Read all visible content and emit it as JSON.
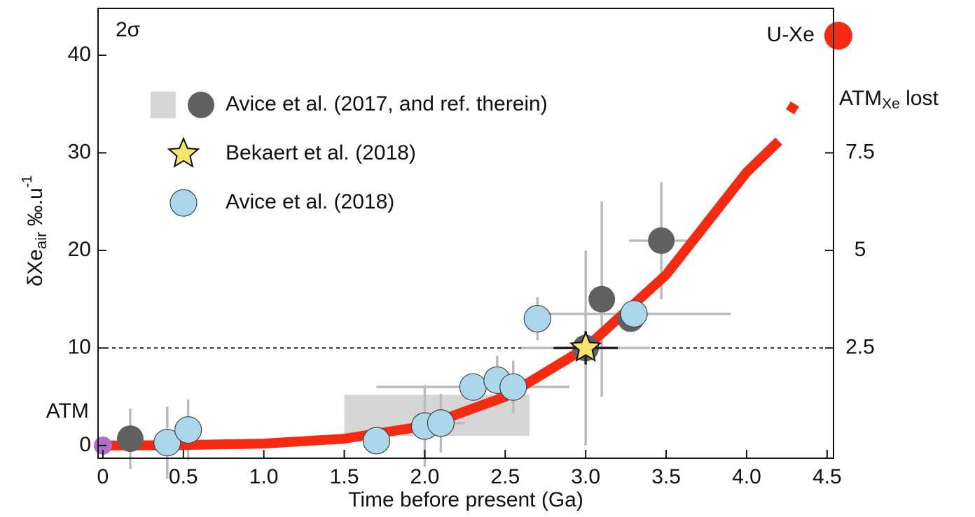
{
  "chart_data": {
    "type": "scatter",
    "annotation": "2σ",
    "xlabel": "Time before present (Ga)",
    "ylabel": {
      "main": "δXe",
      "sub": "air",
      "unit": " ‰.u",
      "sup": "-1"
    },
    "y2label": {
      "main": "ATM",
      "sub": "Xe",
      "rest": " lost"
    },
    "xlim": [
      -0.03,
      4.54
    ],
    "ylim": [
      -1.3,
      44.8
    ],
    "y2lim": [
      -0.325,
      11.2
    ],
    "xticks": [
      0,
      0.5,
      {
        "value": 1,
        "label": "1.0"
      },
      1.5,
      {
        "value": 2,
        "label": "2.0"
      },
      2.5,
      {
        "value": 3,
        "label": "3.0"
      },
      3.5,
      {
        "value": 4,
        "label": "4.0"
      },
      4.5
    ],
    "yticks": [
      0,
      10,
      20,
      30,
      40
    ],
    "y2ticks": [
      2.5,
      5,
      7.5
    ],
    "hline": 10,
    "box": {
      "x": [
        1.5,
        2.65
      ],
      "y": [
        1,
        5.2
      ],
      "color": "#d6d6d6"
    },
    "curve": {
      "color": "#f52a10",
      "x": [
        0,
        0.5,
        1,
        1.5,
        2,
        2.5,
        3,
        3.5,
        4,
        4.2,
        4.23,
        4.27,
        4.3
      ],
      "values": [
        0,
        0.05,
        0.2,
        0.7,
        2,
        5,
        10,
        17.5,
        28,
        31.2,
        null,
        34.2,
        35
      ]
    },
    "points": [
      {
        "label": "ATM",
        "x": 0,
        "y": 0,
        "color": "#b46ec6"
      },
      {
        "label": "U-Xe",
        "x": 4.57,
        "y": 42,
        "color": "#f52a10"
      }
    ],
    "series": [
      {
        "name": "Avice et al. (2017, and ref. therein)",
        "color": "#606060",
        "marker": "circle",
        "x": [
          0.17,
          3.0,
          3.1,
          3.28,
          3.47
        ],
        "values": [
          0.7,
          10,
          15,
          13,
          21
        ],
        "xerr": [
          null,
          0.4,
          null,
          null,
          0.2
        ],
        "yerr": [
          3.1,
          10,
          10,
          null,
          6
        ]
      },
      {
        "name": "Bekaert et al. (2018)",
        "color": "#f6e46c",
        "marker": "star",
        "x": [
          3.0
        ],
        "values": [
          10
        ],
        "xerr": [
          0.2
        ],
        "yerr": [
          1.7
        ]
      },
      {
        "name": "Avice et al. (2018)",
        "color": "#acd6ec",
        "marker": "circle",
        "x": [
          0.4,
          0.53,
          1.7,
          2.0,
          2.1,
          2.3,
          2.45,
          2.55,
          2.7,
          3.3
        ],
        "values": [
          0.3,
          1.6,
          0.5,
          2.0,
          2.3,
          6,
          6.7,
          6,
          13,
          13.5
        ],
        "xerr": [
          null,
          null,
          null,
          null,
          0.15,
          0.6,
          null,
          null,
          null,
          0.6
        ],
        "yerr": [
          3.7,
          3.1,
          null,
          4.2,
          3,
          null,
          2.5,
          2.7,
          2.2,
          null
        ]
      }
    ]
  }
}
